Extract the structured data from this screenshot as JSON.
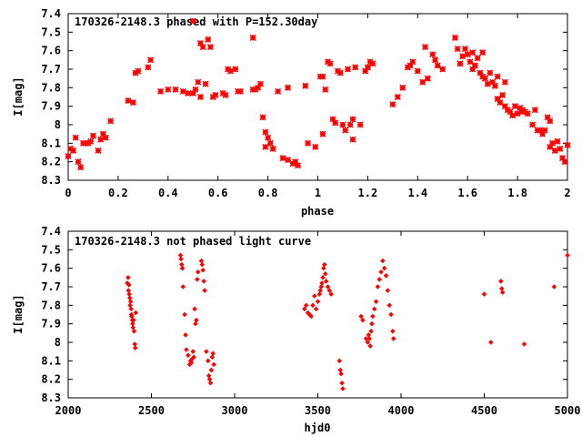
{
  "chart_data": [
    {
      "type": "scatter",
      "title": "170326-2148.3 phased with P=152.30day",
      "xlabel": "phase",
      "ylabel": "I[mag]",
      "xlim": [
        0,
        2
      ],
      "ylim": [
        7.4,
        8.3
      ],
      "y_inverted": true,
      "x_ticks": [
        "0",
        "0.2",
        "0.4",
        "0.6",
        "0.8",
        "1",
        "1.2",
        "1.4",
        "1.6",
        "1.8",
        "2"
      ],
      "y_ticks": [
        "7.4",
        "7.5",
        "7.6",
        "7.7",
        "7.8",
        "7.9",
        "8",
        "8.1",
        "8.2",
        "8.3"
      ],
      "marker": "star",
      "color": "#ff0000",
      "grid": false,
      "x": [
        0.0,
        0.01,
        0.02,
        0.03,
        0.04,
        0.05,
        0.06,
        0.07,
        0.08,
        0.09,
        0.1,
        0.12,
        0.13,
        0.14,
        0.15,
        0.17,
        0.24,
        0.26,
        0.27,
        0.28,
        0.32,
        0.33,
        0.37,
        0.4,
        0.43,
        0.46,
        0.48,
        0.5,
        0.51,
        0.52,
        0.53,
        0.55,
        0.57,
        0.58,
        0.59,
        0.62,
        0.63,
        0.64,
        0.65,
        0.67,
        0.68,
        0.69,
        0.74,
        0.75,
        0.76,
        0.77,
        0.78,
        0.79,
        0.8,
        0.81,
        0.84,
        0.86,
        0.88,
        0.91,
        0.92,
        0.95,
        0.96,
        1.01,
        1.02,
        1.03,
        1.04,
        1.05,
        1.06,
        1.07,
        1.08,
        1.09,
        1.1,
        1.11,
        1.12,
        1.13,
        1.14,
        1.15,
        1.17,
        1.19,
        1.2,
        1.21,
        1.22,
        1.3,
        1.32,
        1.34,
        1.36,
        1.38,
        1.4,
        1.42,
        1.44,
        1.46,
        1.48,
        1.5,
        1.55,
        1.56,
        1.57,
        1.58,
        1.59,
        1.6,
        1.61,
        1.62,
        1.63,
        1.64,
        1.65,
        1.66,
        1.67,
        1.68,
        1.69,
        1.7,
        1.71,
        1.72,
        1.73,
        1.74,
        1.75,
        1.76,
        1.77,
        1.78,
        1.79,
        1.8,
        1.81,
        1.82,
        1.83,
        1.84,
        1.86,
        1.88,
        1.89,
        1.9,
        1.91,
        1.92,
        1.93,
        1.94,
        1.95,
        1.96,
        1.97,
        1.98,
        1.99,
        2.0,
        0.5,
        0.53,
        0.54,
        0.56,
        0.74,
        1.43,
        1.47,
        1.57,
        1.62,
        1.66,
        1.72,
        1.75,
        1.82,
        1.87,
        1.93,
        1.37,
        1.14,
        1.02,
        0.99,
        0.88,
        0.9,
        0.82,
        0.79
      ],
      "y": [
        8.17,
        8.13,
        8.14,
        8.07,
        8.2,
        8.23,
        8.1,
        8.1,
        8.1,
        8.09,
        8.06,
        8.14,
        8.08,
        8.05,
        8.07,
        7.98,
        7.87,
        7.88,
        7.72,
        7.71,
        7.69,
        7.65,
        7.82,
        7.81,
        7.81,
        7.82,
        7.83,
        7.83,
        7.81,
        7.77,
        7.85,
        7.78,
        7.58,
        7.85,
        7.84,
        7.83,
        7.84,
        7.7,
        7.71,
        7.7,
        7.82,
        7.82,
        7.81,
        7.81,
        7.8,
        7.78,
        7.96,
        8.04,
        8.07,
        8.1,
        7.82,
        8.18,
        7.8,
        8.2,
        8.22,
        7.79,
        8.1,
        7.74,
        7.74,
        7.81,
        7.66,
        7.67,
        7.97,
        7.99,
        7.71,
        7.72,
        8.0,
        8.03,
        7.7,
        8.0,
        7.97,
        7.69,
        8.0,
        7.71,
        7.69,
        7.66,
        7.67,
        7.89,
        7.85,
        7.8,
        7.69,
        7.66,
        7.71,
        7.77,
        7.75,
        7.62,
        7.68,
        7.7,
        7.53,
        7.59,
        7.67,
        7.63,
        7.59,
        7.62,
        7.66,
        7.7,
        7.68,
        7.64,
        7.72,
        7.74,
        7.75,
        7.78,
        7.72,
        7.77,
        7.79,
        7.86,
        7.88,
        7.84,
        7.9,
        7.92,
        7.93,
        7.95,
        7.9,
        7.94,
        7.91,
        7.92,
        7.93,
        7.94,
        8.0,
        8.03,
        8.03,
        8.05,
        8.03,
        7.96,
        8.12,
        8.1,
        8.14,
        8.09,
        8.13,
        8.18,
        8.2,
        8.11,
        7.44,
        7.56,
        7.58,
        7.54,
        7.53,
        7.58,
        7.65,
        7.67,
        7.61,
        7.61,
        7.74,
        7.77,
        7.93,
        7.92,
        7.98,
        7.68,
        8.08,
        8.05,
        8.12,
        8.19,
        8.21,
        8.13,
        8.12
      ]
    },
    {
      "type": "scatter",
      "title": "170326-2148.3 not phased light curve",
      "xlabel": "hjd0",
      "ylabel": "I[mag]",
      "xlim": [
        2000,
        5000
      ],
      "ylim": [
        7.4,
        8.3
      ],
      "y_inverted": true,
      "x_ticks": [
        "2000",
        "2500",
        "3000",
        "3500",
        "4000",
        "4500",
        "5000"
      ],
      "y_ticks": [
        "7.4",
        "7.5",
        "7.6",
        "7.7",
        "7.8",
        "7.9",
        "8",
        "8.1",
        "8.2",
        "8.3"
      ],
      "marker": "diamond",
      "color": "#ff0000",
      "grid": false,
      "x": [
        2355,
        2360,
        2362,
        2365,
        2367,
        2370,
        2372,
        2375,
        2378,
        2380,
        2382,
        2385,
        2387,
        2390,
        2393,
        2396,
        2400,
        2403,
        2406,
        2675,
        2678,
        2682,
        2686,
        2690,
        2700,
        2705,
        2710,
        2720,
        2730,
        2735,
        2740,
        2745,
        2750,
        2755,
        2760,
        2765,
        2770,
        2775,
        2780,
        2800,
        2805,
        2810,
        2815,
        2820,
        2830,
        2840,
        2845,
        2850,
        2855,
        2860,
        2865,
        2870,
        2875,
        3420,
        3430,
        3440,
        3450,
        3460,
        3470,
        3480,
        3490,
        3500,
        3510,
        3515,
        3520,
        3525,
        3530,
        3535,
        3540,
        3545,
        3550,
        3560,
        3570,
        3580,
        3630,
        3635,
        3640,
        3645,
        3650,
        3760,
        3770,
        3790,
        3800,
        3805,
        3810,
        3815,
        3820,
        3825,
        3830,
        3840,
        3850,
        3860,
        3870,
        3880,
        3890,
        3900,
        3910,
        3920,
        3930,
        3940,
        3950,
        3955,
        4500,
        4540,
        4600,
        4605,
        4610,
        4740,
        4920,
        5000
      ],
      "y": [
        7.68,
        7.65,
        7.72,
        7.69,
        7.74,
        7.76,
        7.8,
        7.78,
        7.82,
        7.85,
        7.86,
        7.88,
        7.9,
        7.92,
        7.88,
        7.94,
        8.01,
        8.03,
        7.84,
        7.53,
        7.55,
        7.58,
        7.6,
        7.7,
        7.85,
        7.96,
        8.04,
        8.07,
        8.12,
        8.1,
        8.11,
        8.09,
        8.05,
        8.08,
        7.82,
        7.9,
        7.88,
        7.66,
        7.62,
        7.56,
        7.58,
        7.61,
        7.67,
        7.72,
        8.05,
        8.1,
        8.18,
        8.2,
        8.22,
        8.15,
        8.08,
        8.06,
        8.12,
        7.82,
        7.8,
        7.84,
        7.85,
        7.86,
        7.8,
        7.75,
        7.82,
        7.78,
        7.74,
        7.72,
        7.7,
        7.68,
        7.65,
        7.6,
        7.58,
        7.63,
        7.67,
        7.7,
        7.72,
        7.74,
        8.1,
        8.15,
        8.17,
        8.22,
        8.25,
        7.86,
        7.88,
        7.98,
        8.0,
        7.96,
        7.98,
        8.02,
        7.94,
        7.9,
        7.86,
        7.82,
        7.78,
        7.7,
        7.66,
        7.62,
        7.56,
        7.6,
        7.64,
        7.72,
        7.8,
        7.85,
        7.94,
        7.98,
        7.74,
        8.0,
        7.67,
        7.71,
        7.73,
        8.01,
        7.7,
        7.53
      ]
    }
  ]
}
